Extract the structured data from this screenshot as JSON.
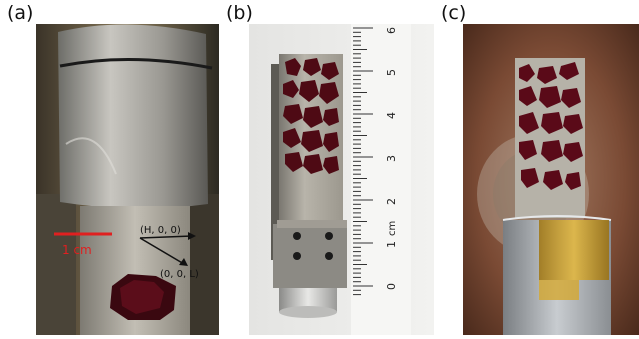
{
  "panels": [
    {
      "label": "(a)",
      "scale_bar": "1 cm",
      "axis_top": "(H, 0, 0)",
      "axis_bottom": "(0, 0, L)"
    },
    {
      "label": "(b)",
      "ruler_labels": [
        "6",
        "5",
        "4",
        "3",
        "2",
        "1",
        "cm",
        "0"
      ]
    },
    {
      "label": "(c)"
    }
  ],
  "colors": {
    "scale_bar": "#e02020",
    "crystal": "#5a0a16",
    "metal": "#a8a49a",
    "background_c": "#8a5a40"
  }
}
